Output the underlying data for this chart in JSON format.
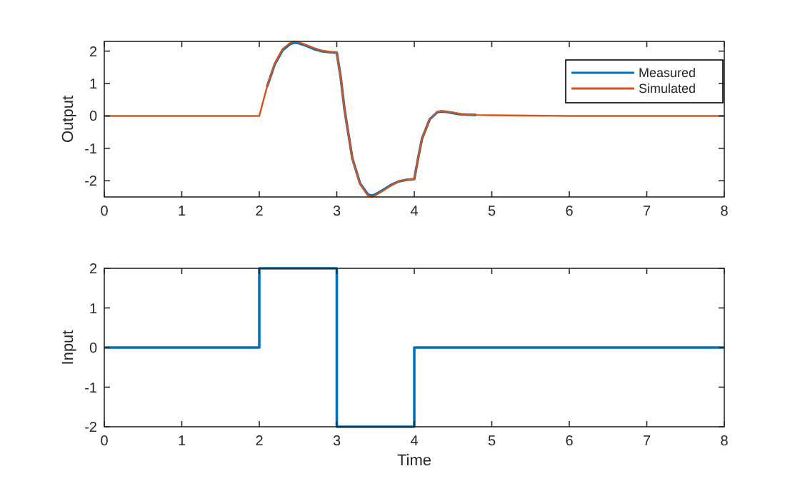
{
  "chart_data": [
    {
      "type": "line",
      "ylabel": "Output",
      "xlim": [
        0,
        8
      ],
      "xticks": [
        0,
        1,
        2,
        3,
        4,
        5,
        6,
        7,
        8
      ],
      "ylim": [
        -2.5,
        2.3
      ],
      "yticks": [
        -2,
        -1,
        0,
        1,
        2
      ],
      "legend": "top right",
      "grid": false,
      "line_style": "solid",
      "marker": "none",
      "series": [
        {
          "name": "Measured",
          "color": "#0072bd",
          "x": [
            2.1,
            2.2,
            2.3,
            2.4,
            2.45,
            2.5,
            2.6,
            2.7,
            2.8,
            2.9,
            3,
            3.05,
            3.1,
            3.2,
            3.3,
            3.4,
            3.45,
            3.5,
            3.6,
            3.7,
            3.8,
            3.9,
            4,
            4.05,
            4.1,
            4.2,
            4.3,
            4.35,
            4.4,
            4.5,
            4.6,
            4.8
          ],
          "values": [
            0.9,
            1.6,
            2.03,
            2.22,
            2.26,
            2.25,
            2.17,
            2.07,
            2,
            1.97,
            1.95,
            1.2,
            0.2,
            -1.3,
            -2.08,
            -2.42,
            -2.46,
            -2.42,
            -2.28,
            -2.13,
            -2.02,
            -1.97,
            -1.95,
            -1.3,
            -0.7,
            -0.1,
            0.12,
            0.14,
            0.13,
            0.09,
            0.05,
            0.03
          ]
        },
        {
          "name": "Simulated",
          "color": "#d95319",
          "x": [
            0,
            2,
            2.1,
            2.2,
            2.3,
            2.4,
            2.45,
            2.5,
            2.6,
            2.7,
            2.8,
            2.9,
            3,
            3.05,
            3.1,
            3.2,
            3.3,
            3.4,
            3.45,
            3.5,
            3.6,
            3.7,
            3.8,
            3.9,
            4,
            4.05,
            4.1,
            4.2,
            4.3,
            4.35,
            4.4,
            4.5,
            4.6,
            4.8,
            5,
            5.5,
            6,
            8
          ],
          "values": [
            0,
            0,
            0.9,
            1.62,
            2.06,
            2.26,
            2.3,
            2.28,
            2.2,
            2.1,
            2.02,
            1.98,
            1.95,
            1.2,
            0.2,
            -1.3,
            -2.1,
            -2.45,
            -2.5,
            -2.45,
            -2.3,
            -2.15,
            -2.02,
            -1.97,
            -1.95,
            -1.3,
            -0.7,
            -0.1,
            0.13,
            0.15,
            0.14,
            0.1,
            0.06,
            0.03,
            0.02,
            0.01,
            0,
            0
          ]
        }
      ]
    },
    {
      "type": "step",
      "xlabel": "Time",
      "ylabel": "Input",
      "xlim": [
        0,
        8
      ],
      "xticks": [
        0,
        1,
        2,
        3,
        4,
        5,
        6,
        7,
        8
      ],
      "ylim": [
        -2,
        2
      ],
      "yticks": [
        -2,
        -1,
        0,
        1,
        2
      ],
      "grid": false,
      "legend": false,
      "line_style": "solid",
      "marker": "none",
      "series": [
        {
          "color": "#0072bd",
          "x": [
            0,
            2,
            3,
            4,
            8
          ],
          "values": [
            0,
            2,
            -2,
            0,
            0
          ]
        }
      ]
    }
  ]
}
